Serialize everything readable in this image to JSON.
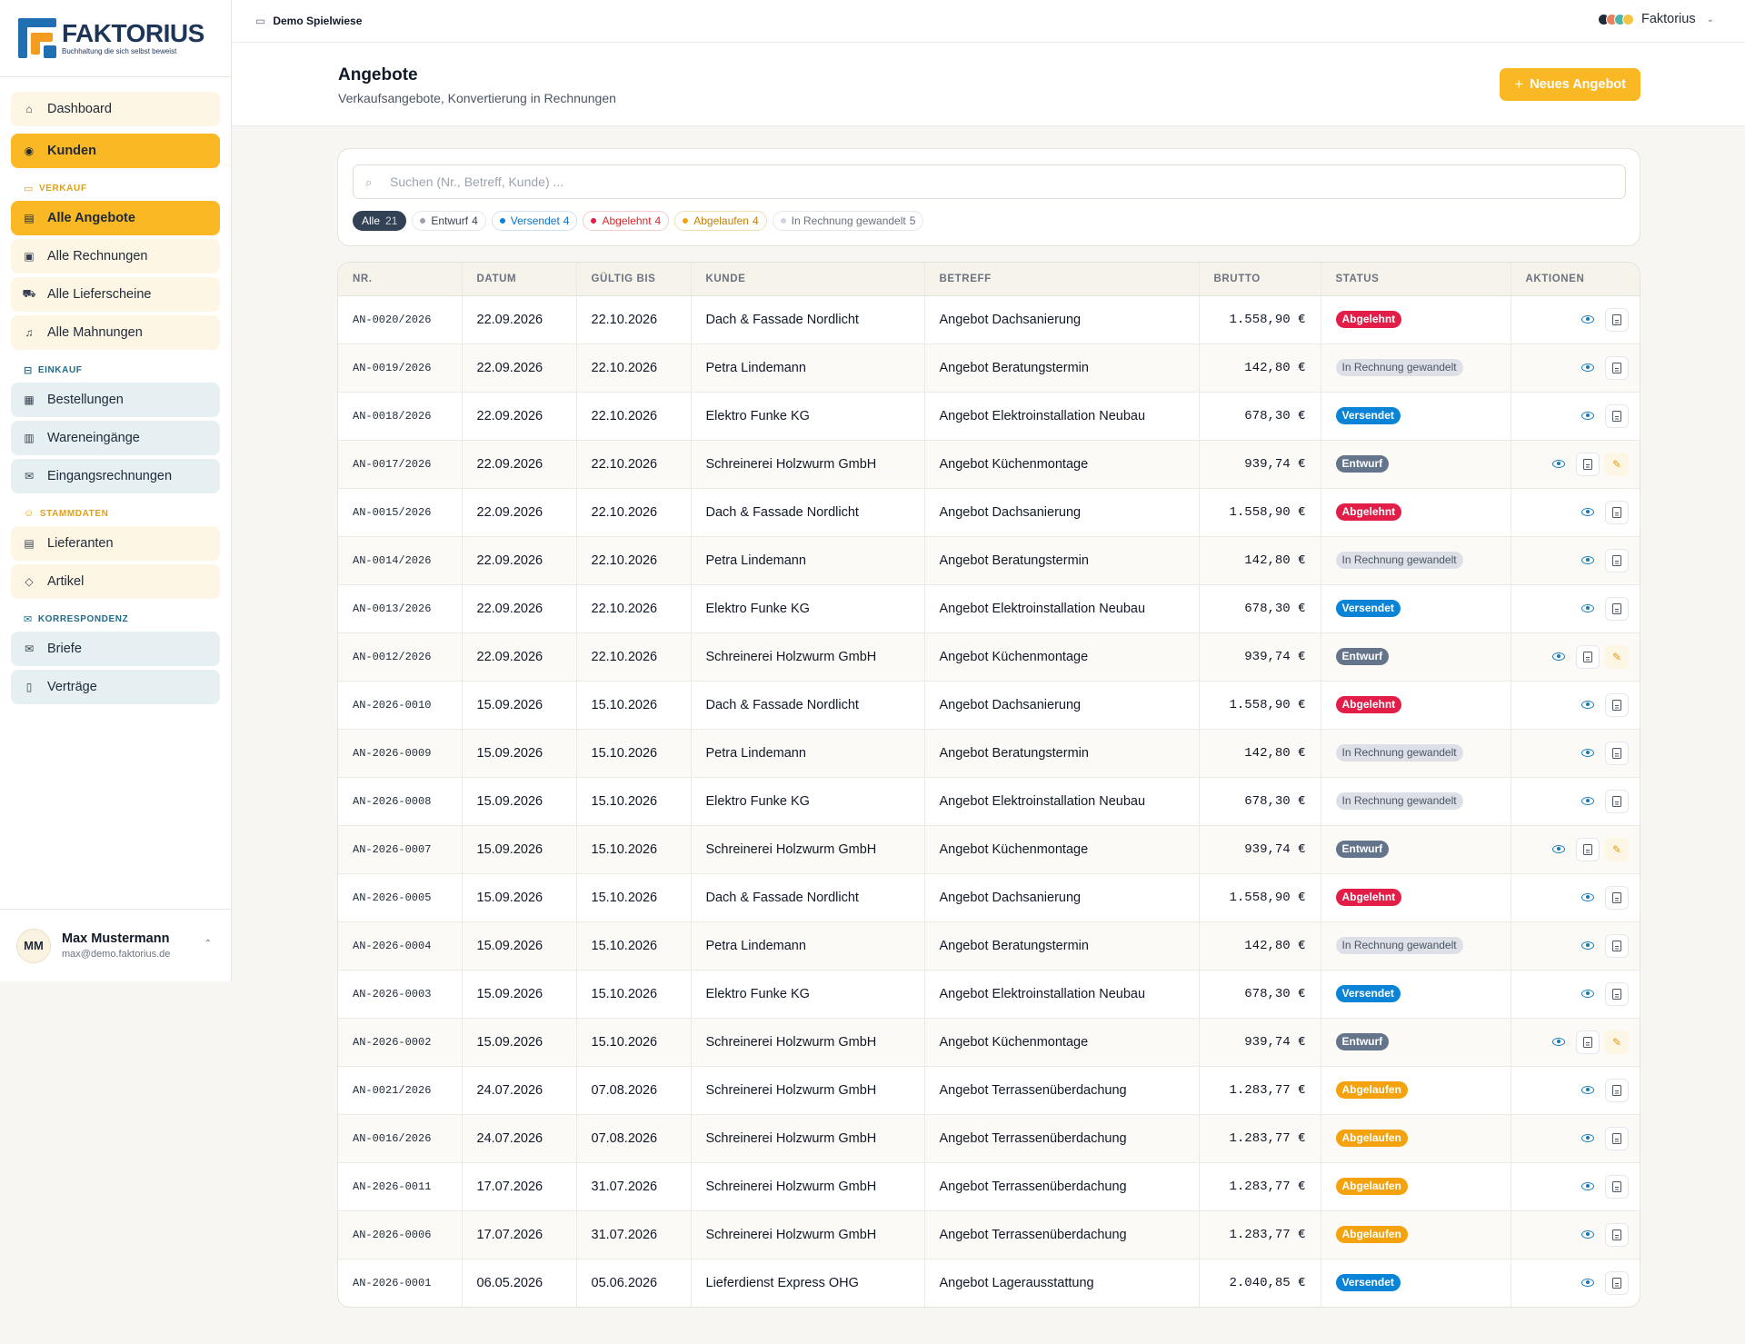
{
  "brand": {
    "name": "FAKTORIUS",
    "tagline": "Buchhaltung die sich selbst beweist"
  },
  "nav": {
    "dashboard": "Dashboard",
    "kunden": "Kunden",
    "sections": {
      "verkauf": "VERKAUF",
      "einkauf": "EINKAUF",
      "stammdaten": "STAMMDATEN",
      "korrespondenz": "KORRESPONDENZ"
    },
    "verkauf_items": [
      "Alle Angebote",
      "Alle Rechnungen",
      "Alle Lieferscheine",
      "Alle Mahnungen"
    ],
    "einkauf_items": [
      "Bestellungen",
      "Wareneingänge",
      "Eingangsrechnungen"
    ],
    "stammdaten_items": [
      "Lieferanten",
      "Artikel"
    ],
    "korrespondenz_items": [
      "Briefe",
      "Verträge"
    ]
  },
  "user": {
    "initials": "MM",
    "name": "Max Mustermann",
    "email": "max@demo.faktorius.de"
  },
  "topbar": {
    "workspace": "Demo Spielwiese",
    "app_name": "Faktorius"
  },
  "page": {
    "title": "Angebote",
    "subtitle": "Verkaufsangebote, Konvertierung in Rechnungen",
    "new_button": "Neues Angebot"
  },
  "search": {
    "placeholder": "Suchen (Nr., Betreff, Kunde) ..."
  },
  "filters": [
    {
      "key": "all",
      "label": "Alle",
      "count": "21"
    },
    {
      "key": "entwurf",
      "label": "Entwurf",
      "count": "4",
      "color": "#9ca3af"
    },
    {
      "key": "versendet",
      "label": "Versendet",
      "count": "4",
      "color": "#0b84d8"
    },
    {
      "key": "abgelehnt",
      "label": "Abgelehnt",
      "count": "4",
      "color": "#e11d48"
    },
    {
      "key": "abgelaufen",
      "label": "Abgelaufen",
      "count": "4",
      "color": "#f4a30e"
    },
    {
      "key": "gewandelt",
      "label": "In Rechnung gewandelt",
      "count": "5",
      "color": "#cbd5e1"
    }
  ],
  "table": {
    "headers": [
      "NR.",
      "DATUM",
      "GÜLTIG BIS",
      "KUNDE",
      "BETREFF",
      "BRUTTO",
      "STATUS",
      "AKTIONEN"
    ],
    "rows": [
      {
        "nr": "AN-0020/2026",
        "datum": "22.09.2026",
        "gueltig": "22.10.2026",
        "kunde": "Dach & Fassade Nordlicht",
        "betreff": "Angebot Dachsanierung",
        "brutto": "1.558,90 €",
        "status": "Abgelehnt",
        "status_key": "abgelehnt"
      },
      {
        "nr": "AN-0019/2026",
        "datum": "22.09.2026",
        "gueltig": "22.10.2026",
        "kunde": "Petra Lindemann",
        "betreff": "Angebot Beratungstermin",
        "brutto": "142,80 €",
        "status": "In Rechnung gewandelt",
        "status_key": "gewandelt"
      },
      {
        "nr": "AN-0018/2026",
        "datum": "22.09.2026",
        "gueltig": "22.10.2026",
        "kunde": "Elektro Funke KG",
        "betreff": "Angebot Elektroinstallation Neubau",
        "brutto": "678,30 €",
        "status": "Versendet",
        "status_key": "versendet"
      },
      {
        "nr": "AN-0017/2026",
        "datum": "22.09.2026",
        "gueltig": "22.10.2026",
        "kunde": "Schreinerei Holzwurm GmbH",
        "betreff": "Angebot Küchenmontage",
        "brutto": "939,74 €",
        "status": "Entwurf",
        "status_key": "entwurf"
      },
      {
        "nr": "AN-0015/2026",
        "datum": "22.09.2026",
        "gueltig": "22.10.2026",
        "kunde": "Dach & Fassade Nordlicht",
        "betreff": "Angebot Dachsanierung",
        "brutto": "1.558,90 €",
        "status": "Abgelehnt",
        "status_key": "abgelehnt"
      },
      {
        "nr": "AN-0014/2026",
        "datum": "22.09.2026",
        "gueltig": "22.10.2026",
        "kunde": "Petra Lindemann",
        "betreff": "Angebot Beratungstermin",
        "brutto": "142,80 €",
        "status": "In Rechnung gewandelt",
        "status_key": "gewandelt"
      },
      {
        "nr": "AN-0013/2026",
        "datum": "22.09.2026",
        "gueltig": "22.10.2026",
        "kunde": "Elektro Funke KG",
        "betreff": "Angebot Elektroinstallation Neubau",
        "brutto": "678,30 €",
        "status": "Versendet",
        "status_key": "versendet"
      },
      {
        "nr": "AN-0012/2026",
        "datum": "22.09.2026",
        "gueltig": "22.10.2026",
        "kunde": "Schreinerei Holzwurm GmbH",
        "betreff": "Angebot Küchenmontage",
        "brutto": "939,74 €",
        "status": "Entwurf",
        "status_key": "entwurf"
      },
      {
        "nr": "AN-2026-0010",
        "datum": "15.09.2026",
        "gueltig": "15.10.2026",
        "kunde": "Dach & Fassade Nordlicht",
        "betreff": "Angebot Dachsanierung",
        "brutto": "1.558,90 €",
        "status": "Abgelehnt",
        "status_key": "abgelehnt"
      },
      {
        "nr": "AN-2026-0009",
        "datum": "15.09.2026",
        "gueltig": "15.10.2026",
        "kunde": "Petra Lindemann",
        "betreff": "Angebot Beratungstermin",
        "brutto": "142,80 €",
        "status": "In Rechnung gewandelt",
        "status_key": "gewandelt"
      },
      {
        "nr": "AN-2026-0008",
        "datum": "15.09.2026",
        "gueltig": "15.10.2026",
        "kunde": "Elektro Funke KG",
        "betreff": "Angebot Elektroinstallation Neubau",
        "brutto": "678,30 €",
        "status": "In Rechnung gewandelt",
        "status_key": "gewandelt"
      },
      {
        "nr": "AN-2026-0007",
        "datum": "15.09.2026",
        "gueltig": "15.10.2026",
        "kunde": "Schreinerei Holzwurm GmbH",
        "betreff": "Angebot Küchenmontage",
        "brutto": "939,74 €",
        "status": "Entwurf",
        "status_key": "entwurf"
      },
      {
        "nr": "AN-2026-0005",
        "datum": "15.09.2026",
        "gueltig": "15.10.2026",
        "kunde": "Dach & Fassade Nordlicht",
        "betreff": "Angebot Dachsanierung",
        "brutto": "1.558,90 €",
        "status": "Abgelehnt",
        "status_key": "abgelehnt"
      },
      {
        "nr": "AN-2026-0004",
        "datum": "15.09.2026",
        "gueltig": "15.10.2026",
        "kunde": "Petra Lindemann",
        "betreff": "Angebot Beratungstermin",
        "brutto": "142,80 €",
        "status": "In Rechnung gewandelt",
        "status_key": "gewandelt"
      },
      {
        "nr": "AN-2026-0003",
        "datum": "15.09.2026",
        "gueltig": "15.10.2026",
        "kunde": "Elektro Funke KG",
        "betreff": "Angebot Elektroinstallation Neubau",
        "brutto": "678,30 €",
        "status": "Versendet",
        "status_key": "versendet"
      },
      {
        "nr": "AN-2026-0002",
        "datum": "15.09.2026",
        "gueltig": "15.10.2026",
        "kunde": "Schreinerei Holzwurm GmbH",
        "betreff": "Angebot Küchenmontage",
        "brutto": "939,74 €",
        "status": "Entwurf",
        "status_key": "entwurf"
      },
      {
        "nr": "AN-0021/2026",
        "datum": "24.07.2026",
        "gueltig": "07.08.2026",
        "kunde": "Schreinerei Holzwurm GmbH",
        "betreff": "Angebot Terrassenüberdachung",
        "brutto": "1.283,77 €",
        "status": "Abgelaufen",
        "status_key": "abgelaufen"
      },
      {
        "nr": "AN-0016/2026",
        "datum": "24.07.2026",
        "gueltig": "07.08.2026",
        "kunde": "Schreinerei Holzwurm GmbH",
        "betreff": "Angebot Terrassenüberdachung",
        "brutto": "1.283,77 €",
        "status": "Abgelaufen",
        "status_key": "abgelaufen"
      },
      {
        "nr": "AN-2026-0011",
        "datum": "17.07.2026",
        "gueltig": "31.07.2026",
        "kunde": "Schreinerei Holzwurm GmbH",
        "betreff": "Angebot Terrassenüberdachung",
        "brutto": "1.283,77 €",
        "status": "Abgelaufen",
        "status_key": "abgelaufen"
      },
      {
        "nr": "AN-2026-0006",
        "datum": "17.07.2026",
        "gueltig": "31.07.2026",
        "kunde": "Schreinerei Holzwurm GmbH",
        "betreff": "Angebot Terrassenüberdachung",
        "brutto": "1.283,77 €",
        "status": "Abgelaufen",
        "status_key": "abgelaufen"
      },
      {
        "nr": "AN-2026-0001",
        "datum": "06.05.2026",
        "gueltig": "05.06.2026",
        "kunde": "Lieferdienst Express OHG",
        "betreff": "Angebot Lagerausstattung",
        "brutto": "2.040,85 €",
        "status": "Versendet",
        "status_key": "versendet"
      }
    ]
  },
  "colors": {
    "accent": "#f9b824",
    "brand_blue": "#1f6fb2",
    "brand_orange": "#f39c1f"
  },
  "icons": [
    "home-icon",
    "user-circle-icon",
    "cart-icon",
    "file-icon",
    "eye-icon",
    "edit-icon",
    "search-icon",
    "folder-icon",
    "plus-icon",
    "chevron-down-icon"
  ]
}
